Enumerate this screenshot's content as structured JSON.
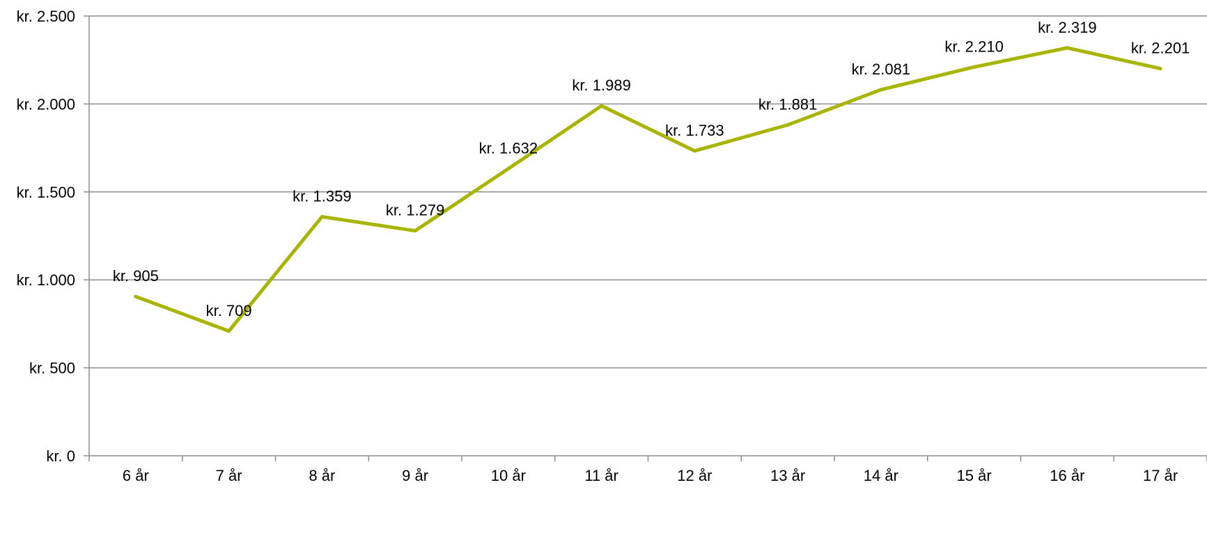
{
  "chart_data": {
    "type": "line",
    "title": "",
    "xlabel": "",
    "ylabel": "",
    "categories": [
      "6 år",
      "7 år",
      "8 år",
      "9 år",
      "10 år",
      "11 år",
      "12 år",
      "13 år",
      "14 år",
      "15 år",
      "16 år",
      "17 år"
    ],
    "series": [
      {
        "values": [
          905,
          709,
          1359,
          1279,
          1632,
          1989,
          1733,
          1881,
          2081,
          2210,
          2319,
          2201
        ],
        "data_labels": [
          "kr. 905",
          "kr. 709",
          "kr. 1.359",
          "kr. 1.279",
          "kr. 1.632",
          "kr. 1.989",
          "kr. 1.733",
          "kr. 1.881",
          "kr. 2.081",
          "kr. 2.210",
          "kr. 2.319",
          "kr. 2.201"
        ],
        "color": "#a8b400"
      }
    ],
    "ylim": [
      0,
      2500
    ],
    "yticks": [
      0,
      500,
      1000,
      1500,
      2000,
      2500
    ],
    "ytick_labels": [
      "kr. 0",
      "kr. 500",
      "kr. 1.000",
      "kr. 1.500",
      "kr. 2.000",
      "kr. 2.500"
    ],
    "grid": "horizontal",
    "gridline_color": "#8c8c8c",
    "axis_color": "#8c8c8c",
    "legend": "none"
  }
}
